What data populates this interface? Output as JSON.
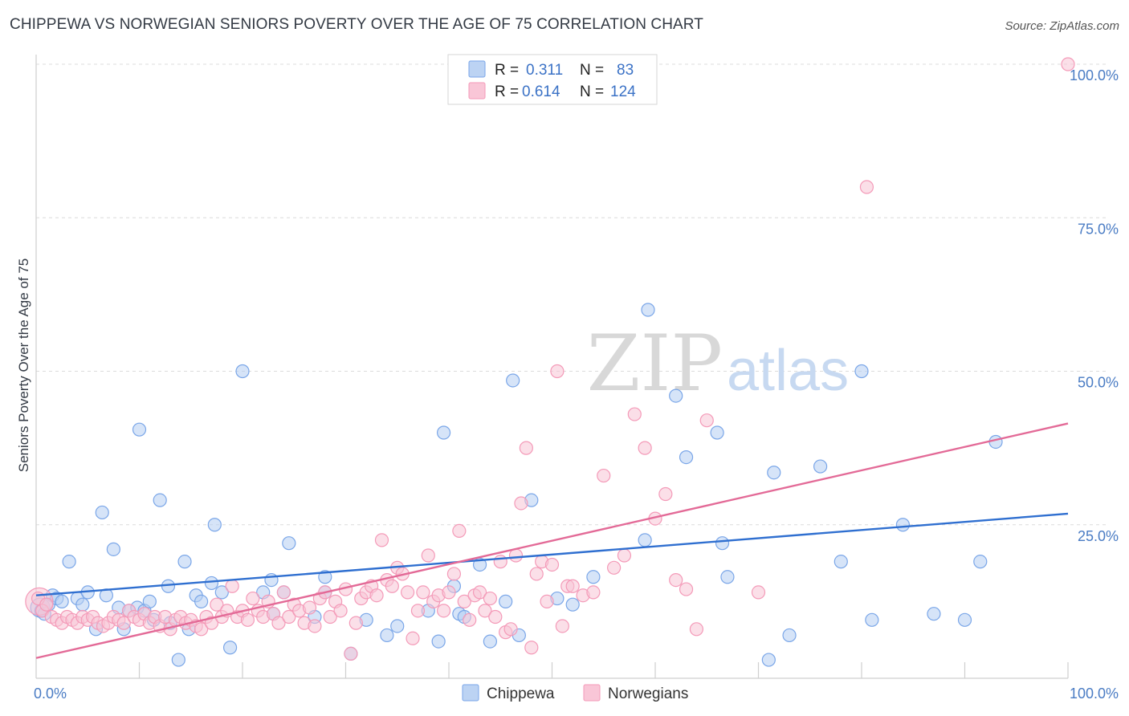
{
  "header": {
    "title": "CHIPPEWA VS NORWEGIAN SENIORS POVERTY OVER THE AGE OF 75 CORRELATION CHART",
    "source": "Source: ZipAtlas.com"
  },
  "watermark": {
    "zip": "ZIP",
    "atlas": "atlas"
  },
  "legend": {
    "rows": [
      {
        "r_label": "R =",
        "r_value": "0.311",
        "n_label": "N =",
        "n_value": "83",
        "color": "#7aa6e8"
      },
      {
        "r_label": "R =",
        "r_value": "0.614",
        "n_label": "N =",
        "n_value": "124",
        "color": "#f49ab8"
      }
    ]
  },
  "bottom_legend": [
    "Chippewa",
    "Norwegians"
  ],
  "chart_data": {
    "type": "scatter",
    "title": "CHIPPEWA VS NORWEGIAN SENIORS POVERTY OVER THE AGE OF 75 CORRELATION CHART",
    "xlabel": "",
    "ylabel": "Seniors Poverty Over the Age of 75",
    "xlim": [
      0,
      100
    ],
    "ylim": [
      0,
      100
    ],
    "x_tick_labels": [
      "0.0%",
      "100.0%"
    ],
    "y_tick_labels": [
      "25.0%",
      "50.0%",
      "75.0%",
      "100.0%"
    ],
    "y_ticks": [
      25,
      50,
      75,
      100
    ],
    "grid": true,
    "legend_position": "top-center",
    "series": [
      {
        "name": "Chippewa",
        "color": "#7aa6e8",
        "line_color": "#2f6fd0",
        "trend": {
          "x": [
            0,
            100
          ],
          "y": [
            13.5,
            26.8
          ]
        },
        "points": [
          [
            0.5,
            11
          ],
          [
            0.8,
            10.5
          ],
          [
            1.2,
            12
          ],
          [
            1.6,
            13.5
          ],
          [
            2,
            13
          ],
          [
            2.5,
            12.5
          ],
          [
            3.2,
            19
          ],
          [
            4,
            13
          ],
          [
            4.5,
            12
          ],
          [
            5,
            14
          ],
          [
            5.8,
            8
          ],
          [
            6.4,
            27
          ],
          [
            6.8,
            13.5
          ],
          [
            7.5,
            21
          ],
          [
            8,
            11.5
          ],
          [
            8.5,
            8
          ],
          [
            9,
            11
          ],
          [
            9.8,
            11.5
          ],
          [
            10,
            40.5
          ],
          [
            10.5,
            11
          ],
          [
            11,
            12.5
          ],
          [
            11.4,
            9.5
          ],
          [
            12,
            29
          ],
          [
            12.8,
            15
          ],
          [
            13,
            9
          ],
          [
            13.8,
            3
          ],
          [
            14.4,
            19
          ],
          [
            14.8,
            8
          ],
          [
            15.5,
            13.5
          ],
          [
            16,
            12.5
          ],
          [
            17,
            15.5
          ],
          [
            17.3,
            25
          ],
          [
            18,
            14
          ],
          [
            18.8,
            5
          ],
          [
            20,
            50
          ],
          [
            22,
            14
          ],
          [
            22.8,
            16
          ],
          [
            23,
            10.5
          ],
          [
            24,
            14
          ],
          [
            24.5,
            22
          ],
          [
            27,
            10
          ],
          [
            28,
            16.5
          ],
          [
            28,
            14
          ],
          [
            30.5,
            4
          ],
          [
            32,
            9.5
          ],
          [
            34,
            7
          ],
          [
            35,
            8.5
          ],
          [
            38,
            11
          ],
          [
            39,
            6
          ],
          [
            39.5,
            40
          ],
          [
            40.5,
            15
          ],
          [
            41,
            10.5
          ],
          [
            41.5,
            10
          ],
          [
            43,
            18.5
          ],
          [
            44,
            6
          ],
          [
            45.5,
            12.5
          ],
          [
            46.2,
            48.5
          ],
          [
            46.8,
            7
          ],
          [
            48,
            29
          ],
          [
            50.5,
            13
          ],
          [
            52,
            12
          ],
          [
            54,
            16.5
          ],
          [
            59,
            22.5
          ],
          [
            59.3,
            60
          ],
          [
            62,
            46
          ],
          [
            63,
            36
          ],
          [
            66,
            40
          ],
          [
            66.5,
            22
          ],
          [
            67,
            16.5
          ],
          [
            71,
            3
          ],
          [
            71.5,
            33.5
          ],
          [
            73,
            7
          ],
          [
            76,
            34.5
          ],
          [
            78,
            19
          ],
          [
            80,
            50
          ],
          [
            81,
            9.5
          ],
          [
            84,
            25
          ],
          [
            87,
            10.5
          ],
          [
            90,
            9.5
          ],
          [
            91.5,
            19
          ],
          [
            93,
            38.5
          ]
        ]
      },
      {
        "name": "Norwegians",
        "color": "#f49ab8",
        "line_color": "#e36a97",
        "trend": {
          "x": [
            0,
            100
          ],
          "y": [
            3.3,
            41.5
          ]
        },
        "points": [
          [
            0.2,
            13
          ],
          [
            0.6,
            11
          ],
          [
            1,
            12
          ],
          [
            1.5,
            10
          ],
          [
            2,
            9.5
          ],
          [
            2.5,
            9
          ],
          [
            3,
            10
          ],
          [
            3.5,
            9.5
          ],
          [
            4,
            9
          ],
          [
            4.5,
            10
          ],
          [
            5,
            9.5
          ],
          [
            5.5,
            10
          ],
          [
            6,
            9
          ],
          [
            6.5,
            8.5
          ],
          [
            7,
            9
          ],
          [
            7.5,
            10
          ],
          [
            8,
            9.5
          ],
          [
            8.5,
            9
          ],
          [
            9,
            11
          ],
          [
            9.5,
            10
          ],
          [
            10,
            9.5
          ],
          [
            10.5,
            10.5
          ],
          [
            11,
            9
          ],
          [
            11.5,
            10
          ],
          [
            12,
            8.5
          ],
          [
            12.5,
            10
          ],
          [
            13,
            8
          ],
          [
            13.5,
            9.5
          ],
          [
            14,
            10
          ],
          [
            14.5,
            9
          ],
          [
            15,
            9.5
          ],
          [
            15.5,
            8.5
          ],
          [
            16,
            8
          ],
          [
            16.5,
            10
          ],
          [
            17,
            9
          ],
          [
            17.5,
            12
          ],
          [
            18,
            10
          ],
          [
            18.5,
            11
          ],
          [
            19,
            15
          ],
          [
            19.5,
            10
          ],
          [
            20,
            11
          ],
          [
            20.5,
            9.5
          ],
          [
            21,
            13
          ],
          [
            21.5,
            11
          ],
          [
            22,
            10
          ],
          [
            22.5,
            12.5
          ],
          [
            23,
            10.5
          ],
          [
            23.5,
            9
          ],
          [
            24,
            14
          ],
          [
            24.5,
            10
          ],
          [
            25,
            12
          ],
          [
            25.5,
            11
          ],
          [
            26,
            9
          ],
          [
            26.5,
            11.5
          ],
          [
            27,
            8.5
          ],
          [
            27.5,
            13
          ],
          [
            28,
            14
          ],
          [
            28.5,
            10
          ],
          [
            29,
            12.5
          ],
          [
            29.5,
            11
          ],
          [
            30,
            14.5
          ],
          [
            30.5,
            4
          ],
          [
            31,
            9
          ],
          [
            31.5,
            13
          ],
          [
            32,
            14
          ],
          [
            32.5,
            15
          ],
          [
            33,
            13.5
          ],
          [
            33.5,
            22.5
          ],
          [
            34,
            16
          ],
          [
            34.5,
            15
          ],
          [
            35,
            18
          ],
          [
            35.5,
            17
          ],
          [
            36,
            14
          ],
          [
            36.5,
            6.5
          ],
          [
            37,
            11
          ],
          [
            37.5,
            14
          ],
          [
            38,
            20
          ],
          [
            38.5,
            12.5
          ],
          [
            39,
            13.5
          ],
          [
            39.5,
            11
          ],
          [
            40,
            14
          ],
          [
            40.5,
            17
          ],
          [
            41,
            24
          ],
          [
            41.5,
            12.5
          ],
          [
            42,
            9.5
          ],
          [
            42.5,
            13.5
          ],
          [
            43,
            14
          ],
          [
            43.5,
            11
          ],
          [
            44,
            13
          ],
          [
            44.5,
            10
          ],
          [
            45,
            19
          ],
          [
            45.5,
            7.5
          ],
          [
            46,
            8
          ],
          [
            46.5,
            20
          ],
          [
            47,
            28.5
          ],
          [
            47.5,
            37.5
          ],
          [
            48,
            5
          ],
          [
            48.5,
            17
          ],
          [
            49,
            19
          ],
          [
            49.5,
            12.5
          ],
          [
            50,
            18.5
          ],
          [
            50.5,
            50
          ],
          [
            51,
            8.5
          ],
          [
            51.5,
            15
          ],
          [
            52,
            15
          ],
          [
            53,
            13.5
          ],
          [
            54,
            14
          ],
          [
            55,
            33
          ],
          [
            56,
            18
          ],
          [
            57,
            20
          ],
          [
            58,
            43
          ],
          [
            59,
            37.5
          ],
          [
            60,
            26
          ],
          [
            61,
            30
          ],
          [
            62,
            16
          ],
          [
            63,
            14.5
          ],
          [
            64,
            8
          ],
          [
            65,
            42
          ],
          [
            70,
            14
          ],
          [
            80.5,
            80
          ],
          [
            100,
            100
          ]
        ]
      }
    ]
  }
}
